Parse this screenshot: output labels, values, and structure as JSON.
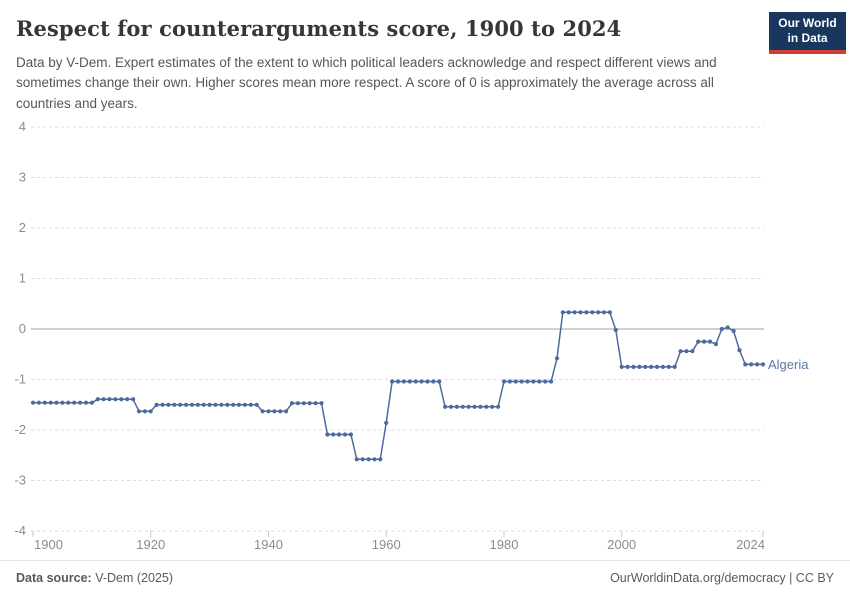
{
  "header": {
    "title": "Respect for counterarguments score, 1900 to 2024",
    "subtitle": "Data by V-Dem. Expert estimates of the extent to which political leaders acknowledge and respect different views and sometimes change their own. Higher scores mean more respect. A score of 0 is approximately the average across all countries and years.",
    "logo_line1": "Our World",
    "logo_line2": "in Data",
    "logo_bg_color": "#18375f",
    "logo_accent_color": "#cf3d34"
  },
  "chart_data": {
    "type": "line",
    "title": "Respect for counterarguments score, 1900 to 2024",
    "xlabel": "",
    "ylabel": "",
    "xlim": [
      1900,
      2024
    ],
    "ylim": [
      -4,
      4
    ],
    "xticks": [
      1900,
      1920,
      1940,
      1960,
      1980,
      2000,
      2024
    ],
    "yticks": [
      4,
      3,
      2,
      1,
      0,
      -1,
      -2,
      -3,
      -4
    ],
    "grid": "horizontal-dashed",
    "zero_line": true,
    "line_color": "#4c6a9c",
    "label_color": "#5e79a3",
    "series": [
      {
        "name": "Algeria",
        "x_start": 1900,
        "values": [
          -1.46,
          -1.46,
          -1.46,
          -1.46,
          -1.46,
          -1.46,
          -1.46,
          -1.46,
          -1.46,
          -1.46,
          -1.46,
          -1.39,
          -1.39,
          -1.39,
          -1.39,
          -1.39,
          -1.39,
          -1.39,
          -1.63,
          -1.63,
          -1.63,
          -1.5,
          -1.5,
          -1.5,
          -1.5,
          -1.5,
          -1.5,
          -1.5,
          -1.5,
          -1.5,
          -1.5,
          -1.5,
          -1.5,
          -1.5,
          -1.5,
          -1.5,
          -1.5,
          -1.5,
          -1.5,
          -1.63,
          -1.63,
          -1.63,
          -1.63,
          -1.63,
          -1.47,
          -1.47,
          -1.47,
          -1.47,
          -1.47,
          -1.47,
          -2.09,
          -2.09,
          -2.09,
          -2.09,
          -2.09,
          -2.58,
          -2.58,
          -2.58,
          -2.58,
          -2.58,
          -1.86,
          -1.04,
          -1.04,
          -1.04,
          -1.04,
          -1.04,
          -1.04,
          -1.04,
          -1.04,
          -1.04,
          -1.54,
          -1.54,
          -1.54,
          -1.54,
          -1.54,
          -1.54,
          -1.54,
          -1.54,
          -1.54,
          -1.54,
          -1.04,
          -1.04,
          -1.04,
          -1.04,
          -1.04,
          -1.04,
          -1.04,
          -1.04,
          -1.04,
          -0.58,
          0.33,
          0.33,
          0.33,
          0.33,
          0.33,
          0.33,
          0.33,
          0.33,
          0.33,
          -0.02,
          -0.75,
          -0.75,
          -0.75,
          -0.75,
          -0.75,
          -0.75,
          -0.75,
          -0.75,
          -0.75,
          -0.75,
          -0.44,
          -0.44,
          -0.44,
          -0.25,
          -0.25,
          -0.25,
          -0.3,
          0,
          0.03,
          -0.04,
          -0.42,
          -0.7,
          -0.7,
          -0.7,
          -0.7
        ]
      }
    ]
  },
  "footer": {
    "source_label": "Data source:",
    "source_value": "V-Dem (2025)",
    "url": "OurWorldinData.org/democracy",
    "license": " | CC BY"
  }
}
